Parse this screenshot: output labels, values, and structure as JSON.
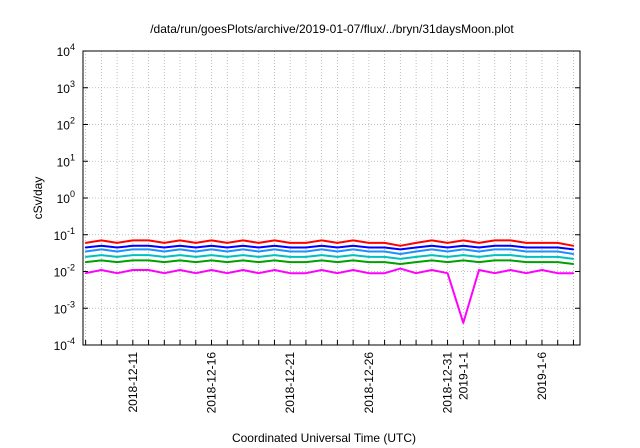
{
  "chart_data": {
    "type": "line",
    "title": "/data/run/goesPlots/archive/2019-01-07/flux/../bryn/31daysMoon.plot",
    "xlabel": "Coordinated Universal Time (UTC)",
    "ylabel": "cSv/day",
    "yscale": "log",
    "ylim": [
      0.0001,
      10000
    ],
    "xlim": [
      "2018-12-07T20:00",
      "2019-01-08T10:00"
    ],
    "grid": true,
    "y_ticks": [
      {
        "value": 0.0001,
        "base": "10",
        "exp": "-4"
      },
      {
        "value": 0.001,
        "base": "10",
        "exp": "-3"
      },
      {
        "value": 0.01,
        "base": "10",
        "exp": "-2"
      },
      {
        "value": 0.1,
        "base": "10",
        "exp": "-1"
      },
      {
        "value": 1,
        "base": "10",
        "exp": "0"
      },
      {
        "value": 10,
        "base": "10",
        "exp": "1"
      },
      {
        "value": 100,
        "base": "10",
        "exp": "2"
      },
      {
        "value": 1000,
        "base": "10",
        "exp": "3"
      },
      {
        "value": 10000,
        "base": "10",
        "exp": "4"
      }
    ],
    "x_ticks": [
      {
        "value": "2018-12-11",
        "label": "2018-12-11"
      },
      {
        "value": "2018-12-16",
        "label": "2018-12-16"
      },
      {
        "value": "2018-12-21",
        "label": "2018-12-21"
      },
      {
        "value": "2018-12-26",
        "label": "2018-12-26"
      },
      {
        "value": "2018-12-31",
        "label": "2018-12-31"
      },
      {
        "value": "2019-01-01",
        "label": "2019-1-1"
      },
      {
        "value": "2019-01-06",
        "label": "2019-1-6"
      }
    ],
    "series": [
      {
        "color": "#ff0000",
        "values": [
          [
            "2018-12-08",
            0.06
          ],
          [
            "2018-12-09",
            0.07
          ],
          [
            "2018-12-10",
            0.06
          ],
          [
            "2018-12-11",
            0.07
          ],
          [
            "2018-12-12",
            0.07
          ],
          [
            "2018-12-13",
            0.06
          ],
          [
            "2018-12-14",
            0.07
          ],
          [
            "2018-12-15",
            0.06
          ],
          [
            "2018-12-16",
            0.07
          ],
          [
            "2018-12-17",
            0.06
          ],
          [
            "2018-12-18",
            0.07
          ],
          [
            "2018-12-19",
            0.06
          ],
          [
            "2018-12-20",
            0.07
          ],
          [
            "2018-12-21",
            0.06
          ],
          [
            "2018-12-22",
            0.06
          ],
          [
            "2018-12-23",
            0.07
          ],
          [
            "2018-12-24",
            0.06
          ],
          [
            "2018-12-25",
            0.07
          ],
          [
            "2018-12-26",
            0.06
          ],
          [
            "2018-12-27",
            0.06
          ],
          [
            "2018-12-28",
            0.05
          ],
          [
            "2018-12-29",
            0.06
          ],
          [
            "2018-12-30",
            0.07
          ],
          [
            "2018-12-31",
            0.06
          ],
          [
            "2019-01-01",
            0.07
          ],
          [
            "2019-01-02",
            0.06
          ],
          [
            "2019-01-03",
            0.07
          ],
          [
            "2019-01-04",
            0.07
          ],
          [
            "2019-01-05",
            0.06
          ],
          [
            "2019-01-06",
            0.06
          ],
          [
            "2019-01-07",
            0.06
          ],
          [
            "2019-01-08",
            0.05
          ]
        ]
      },
      {
        "color": "#0000ff",
        "values": [
          [
            "2018-12-08",
            0.045
          ],
          [
            "2018-12-09",
            0.05
          ],
          [
            "2018-12-10",
            0.045
          ],
          [
            "2018-12-11",
            0.05
          ],
          [
            "2018-12-12",
            0.05
          ],
          [
            "2018-12-13",
            0.045
          ],
          [
            "2018-12-14",
            0.05
          ],
          [
            "2018-12-15",
            0.045
          ],
          [
            "2018-12-16",
            0.05
          ],
          [
            "2018-12-17",
            0.045
          ],
          [
            "2018-12-18",
            0.05
          ],
          [
            "2018-12-19",
            0.045
          ],
          [
            "2018-12-20",
            0.05
          ],
          [
            "2018-12-21",
            0.045
          ],
          [
            "2018-12-22",
            0.045
          ],
          [
            "2018-12-23",
            0.05
          ],
          [
            "2018-12-24",
            0.045
          ],
          [
            "2018-12-25",
            0.05
          ],
          [
            "2018-12-26",
            0.045
          ],
          [
            "2018-12-27",
            0.045
          ],
          [
            "2018-12-28",
            0.04
          ],
          [
            "2018-12-29",
            0.045
          ],
          [
            "2018-12-30",
            0.05
          ],
          [
            "2018-12-31",
            0.045
          ],
          [
            "2019-01-01",
            0.05
          ],
          [
            "2019-01-02",
            0.045
          ],
          [
            "2019-01-03",
            0.05
          ],
          [
            "2019-01-04",
            0.05
          ],
          [
            "2019-01-05",
            0.045
          ],
          [
            "2019-01-06",
            0.045
          ],
          [
            "2019-01-07",
            0.045
          ],
          [
            "2019-01-08",
            0.04
          ]
        ]
      },
      {
        "color": "#1e90ff",
        "values": [
          [
            "2018-12-08",
            0.035
          ],
          [
            "2018-12-09",
            0.04
          ],
          [
            "2018-12-10",
            0.035
          ],
          [
            "2018-12-11",
            0.04
          ],
          [
            "2018-12-12",
            0.04
          ],
          [
            "2018-12-13",
            0.035
          ],
          [
            "2018-12-14",
            0.04
          ],
          [
            "2018-12-15",
            0.035
          ],
          [
            "2018-12-16",
            0.04
          ],
          [
            "2018-12-17",
            0.035
          ],
          [
            "2018-12-18",
            0.04
          ],
          [
            "2018-12-19",
            0.035
          ],
          [
            "2018-12-20",
            0.04
          ],
          [
            "2018-12-21",
            0.035
          ],
          [
            "2018-12-22",
            0.035
          ],
          [
            "2018-12-23",
            0.04
          ],
          [
            "2018-12-24",
            0.035
          ],
          [
            "2018-12-25",
            0.04
          ],
          [
            "2018-12-26",
            0.035
          ],
          [
            "2018-12-27",
            0.035
          ],
          [
            "2018-12-28",
            0.03
          ],
          [
            "2018-12-29",
            0.035
          ],
          [
            "2018-12-30",
            0.04
          ],
          [
            "2018-12-31",
            0.035
          ],
          [
            "2019-01-01",
            0.04
          ],
          [
            "2019-01-02",
            0.035
          ],
          [
            "2019-01-03",
            0.04
          ],
          [
            "2019-01-04",
            0.04
          ],
          [
            "2019-01-05",
            0.035
          ],
          [
            "2019-01-06",
            0.035
          ],
          [
            "2019-01-07",
            0.035
          ],
          [
            "2019-01-08",
            0.03
          ]
        ]
      },
      {
        "color": "#00c0c0",
        "values": [
          [
            "2018-12-08",
            0.025
          ],
          [
            "2018-12-09",
            0.028
          ],
          [
            "2018-12-10",
            0.025
          ],
          [
            "2018-12-11",
            0.028
          ],
          [
            "2018-12-12",
            0.028
          ],
          [
            "2018-12-13",
            0.025
          ],
          [
            "2018-12-14",
            0.028
          ],
          [
            "2018-12-15",
            0.025
          ],
          [
            "2018-12-16",
            0.028
          ],
          [
            "2018-12-17",
            0.025
          ],
          [
            "2018-12-18",
            0.028
          ],
          [
            "2018-12-19",
            0.025
          ],
          [
            "2018-12-20",
            0.028
          ],
          [
            "2018-12-21",
            0.025
          ],
          [
            "2018-12-22",
            0.025
          ],
          [
            "2018-12-23",
            0.028
          ],
          [
            "2018-12-24",
            0.025
          ],
          [
            "2018-12-25",
            0.028
          ],
          [
            "2018-12-26",
            0.025
          ],
          [
            "2018-12-27",
            0.025
          ],
          [
            "2018-12-28",
            0.022
          ],
          [
            "2018-12-29",
            0.025
          ],
          [
            "2018-12-30",
            0.028
          ],
          [
            "2018-12-31",
            0.025
          ],
          [
            "2019-01-01",
            0.028
          ],
          [
            "2019-01-02",
            0.025
          ],
          [
            "2019-01-03",
            0.028
          ],
          [
            "2019-01-04",
            0.028
          ],
          [
            "2019-01-05",
            0.025
          ],
          [
            "2019-01-06",
            0.025
          ],
          [
            "2019-01-07",
            0.025
          ],
          [
            "2019-01-08",
            0.022
          ]
        ]
      },
      {
        "color": "#00a000",
        "values": [
          [
            "2018-12-08",
            0.018
          ],
          [
            "2018-12-09",
            0.02
          ],
          [
            "2018-12-10",
            0.018
          ],
          [
            "2018-12-11",
            0.02
          ],
          [
            "2018-12-12",
            0.02
          ],
          [
            "2018-12-13",
            0.018
          ],
          [
            "2018-12-14",
            0.02
          ],
          [
            "2018-12-15",
            0.018
          ],
          [
            "2018-12-16",
            0.02
          ],
          [
            "2018-12-17",
            0.018
          ],
          [
            "2018-12-18",
            0.02
          ],
          [
            "2018-12-19",
            0.018
          ],
          [
            "2018-12-20",
            0.02
          ],
          [
            "2018-12-21",
            0.018
          ],
          [
            "2018-12-22",
            0.018
          ],
          [
            "2018-12-23",
            0.02
          ],
          [
            "2018-12-24",
            0.018
          ],
          [
            "2018-12-25",
            0.02
          ],
          [
            "2018-12-26",
            0.018
          ],
          [
            "2018-12-27",
            0.018
          ],
          [
            "2018-12-28",
            0.016
          ],
          [
            "2018-12-29",
            0.018
          ],
          [
            "2018-12-30",
            0.02
          ],
          [
            "2018-12-31",
            0.018
          ],
          [
            "2019-01-01",
            0.02
          ],
          [
            "2019-01-02",
            0.018
          ],
          [
            "2019-01-03",
            0.02
          ],
          [
            "2019-01-04",
            0.02
          ],
          [
            "2019-01-05",
            0.018
          ],
          [
            "2019-01-06",
            0.018
          ],
          [
            "2019-01-07",
            0.018
          ],
          [
            "2019-01-08",
            0.016
          ]
        ]
      },
      {
        "color": "#ff00ff",
        "values": [
          [
            "2018-12-08",
            0.009
          ],
          [
            "2018-12-09",
            0.011
          ],
          [
            "2018-12-10",
            0.009
          ],
          [
            "2018-12-11",
            0.011
          ],
          [
            "2018-12-12",
            0.011
          ],
          [
            "2018-12-13",
            0.009
          ],
          [
            "2018-12-14",
            0.011
          ],
          [
            "2018-12-15",
            0.009
          ],
          [
            "2018-12-16",
            0.011
          ],
          [
            "2018-12-17",
            0.009
          ],
          [
            "2018-12-18",
            0.011
          ],
          [
            "2018-12-19",
            0.009
          ],
          [
            "2018-12-20",
            0.011
          ],
          [
            "2018-12-21",
            0.009
          ],
          [
            "2018-12-22",
            0.009
          ],
          [
            "2018-12-23",
            0.011
          ],
          [
            "2018-12-24",
            0.009
          ],
          [
            "2018-12-25",
            0.011
          ],
          [
            "2018-12-26",
            0.009
          ],
          [
            "2018-12-27",
            0.009
          ],
          [
            "2018-12-28",
            0.012
          ],
          [
            "2018-12-29",
            0.009
          ],
          [
            "2018-12-30",
            0.011
          ],
          [
            "2018-12-31",
            0.009
          ],
          [
            "2019-01-01",
            0.0004
          ],
          [
            "2019-01-02",
            0.011
          ],
          [
            "2019-01-03",
            0.009
          ],
          [
            "2019-01-04",
            0.011
          ],
          [
            "2019-01-05",
            0.009
          ],
          [
            "2019-01-06",
            0.011
          ],
          [
            "2019-01-07",
            0.009
          ],
          [
            "2019-01-08",
            0.009
          ]
        ]
      }
    ]
  }
}
